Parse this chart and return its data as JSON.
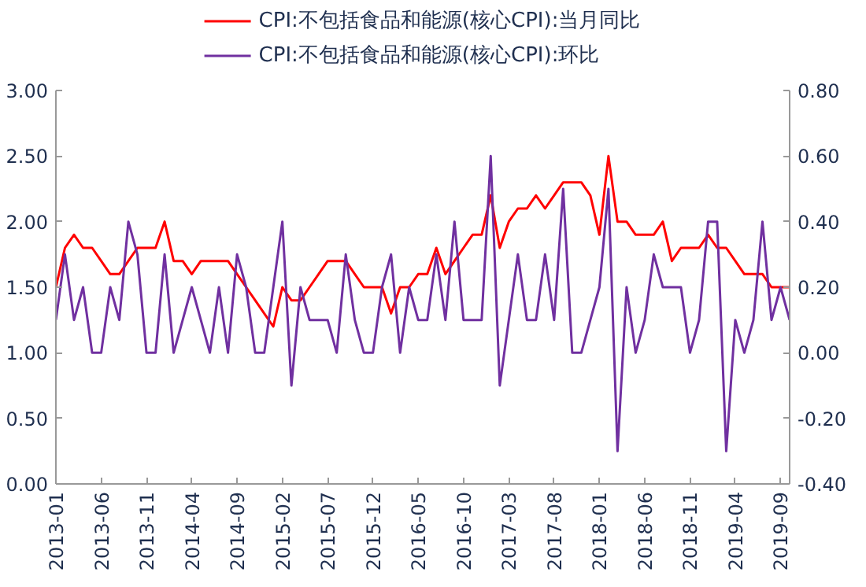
{
  "chart_data": {
    "type": "line",
    "legend": "top",
    "grid": false,
    "marker": "none",
    "line_style": "solid",
    "x": [
      "2013-01",
      "2013-02",
      "2013-03",
      "2013-04",
      "2013-05",
      "2013-06",
      "2013-07",
      "2013-08",
      "2013-09",
      "2013-10",
      "2013-11",
      "2013-12",
      "2014-01",
      "2014-02",
      "2014-03",
      "2014-04",
      "2014-05",
      "2014-06",
      "2014-07",
      "2014-08",
      "2014-09",
      "2014-10",
      "2014-11",
      "2014-12",
      "2015-01",
      "2015-02",
      "2015-03",
      "2015-04",
      "2015-05",
      "2015-06",
      "2015-07",
      "2015-08",
      "2015-09",
      "2015-10",
      "2015-11",
      "2015-12",
      "2016-01",
      "2016-02",
      "2016-03",
      "2016-04",
      "2016-05",
      "2016-06",
      "2016-07",
      "2016-08",
      "2016-09",
      "2016-10",
      "2016-11",
      "2016-12",
      "2017-01",
      "2017-02",
      "2017-03",
      "2017-04",
      "2017-05",
      "2017-06",
      "2017-07",
      "2017-08",
      "2017-09",
      "2017-10",
      "2017-11",
      "2017-12",
      "2018-01",
      "2018-02",
      "2018-03",
      "2018-04",
      "2018-05",
      "2018-06",
      "2018-07",
      "2018-08",
      "2018-09",
      "2018-10",
      "2018-11",
      "2018-12",
      "2019-01",
      "2019-02",
      "2019-03",
      "2019-04",
      "2019-05",
      "2019-06",
      "2019-07",
      "2019-08",
      "2019-09",
      "2019-10"
    ],
    "series": [
      {
        "name": "CPI:不包括食品和能源(核心CPI):当月同比",
        "color": "#ff0000",
        "values": [
          1.5,
          1.8,
          1.9,
          1.8,
          1.8,
          1.7,
          1.6,
          1.6,
          1.7,
          1.8,
          1.8,
          1.8,
          2.0,
          1.7,
          1.7,
          1.6,
          1.7,
          1.7,
          1.7,
          1.7,
          1.6,
          1.5,
          1.4,
          1.3,
          1.2,
          1.5,
          1.4,
          1.4,
          1.5,
          1.6,
          1.7,
          1.7,
          1.7,
          1.6,
          1.5,
          1.5,
          1.5,
          1.3,
          1.5,
          1.5,
          1.6,
          1.6,
          1.8,
          1.6,
          1.7,
          1.8,
          1.9,
          1.9,
          2.2,
          1.8,
          2.0,
          2.1,
          2.1,
          2.2,
          2.1,
          2.2,
          2.3,
          2.3,
          2.3,
          2.2,
          1.9,
          2.5,
          2.0,
          2.0,
          1.9,
          1.9,
          1.9,
          2.0,
          1.7,
          1.8,
          1.8,
          1.8,
          1.9,
          1.8,
          1.8,
          1.7,
          1.6,
          1.6,
          1.6,
          1.5,
          1.5,
          1.5
        ]
      },
      {
        "name": "CPI:不包括食品和能源(核心CPI):环比",
        "color": "#7030a0",
        "axis": "y2",
        "values": [
          0.1,
          0.3,
          0.1,
          0.2,
          0.0,
          0.0,
          0.2,
          0.1,
          0.4,
          0.3,
          0.0,
          0.0,
          0.3,
          0.0,
          0.1,
          0.2,
          0.1,
          0.0,
          0.2,
          0.0,
          0.3,
          0.2,
          0.0,
          0.0,
          0.2,
          0.4,
          -0.1,
          0.2,
          0.1,
          0.1,
          0.1,
          0.0,
          0.3,
          0.1,
          0.0,
          0.0,
          0.2,
          0.3,
          0.0,
          0.2,
          0.1,
          0.1,
          0.3,
          0.1,
          0.4,
          0.1,
          0.1,
          0.1,
          0.6,
          -0.1,
          0.1,
          0.3,
          0.1,
          0.1,
          0.3,
          0.1,
          0.5,
          0.0,
          0.0,
          0.1,
          0.2,
          0.5,
          -0.3,
          0.2,
          0.0,
          0.1,
          0.3,
          0.2,
          0.2,
          0.2,
          0.0,
          0.1,
          0.4,
          0.4,
          -0.3,
          0.1,
          0.0,
          0.1,
          0.4,
          0.1,
          0.2,
          0.1
        ]
      }
    ],
    "xlim": [
      "2013-01",
      "2019-10"
    ],
    "xticks": [
      "2013-01",
      "2013-06",
      "2013-11",
      "2014-04",
      "2014-09",
      "2015-02",
      "2015-07",
      "2015-12",
      "2016-05",
      "2016-10",
      "2017-03",
      "2017-08",
      "2018-01",
      "2018-06",
      "2018-11",
      "2019-04",
      "2019-09"
    ],
    "ylim": [
      0,
      3
    ],
    "yticks": [
      {
        "value": 0,
        "label": "0.00"
      },
      {
        "value": 0.5,
        "label": "0.50"
      },
      {
        "value": 1,
        "label": "1.00"
      },
      {
        "value": 1.5,
        "label": "1.50"
      },
      {
        "value": 2,
        "label": "2.00"
      },
      {
        "value": 2.5,
        "label": "2.50"
      },
      {
        "value": 3,
        "label": "3.00"
      }
    ],
    "y2lim": [
      -0.4,
      0.8
    ],
    "y2ticks": [
      {
        "value": -0.4,
        "label": "-0.40"
      },
      {
        "value": -0.2,
        "label": "-0.20"
      },
      {
        "value": 0,
        "label": "0.00"
      },
      {
        "value": 0.2,
        "label": "0.20"
      },
      {
        "value": 0.4,
        "label": "0.40"
      },
      {
        "value": 0.6,
        "label": "0.60"
      },
      {
        "value": 0.8,
        "label": "0.80"
      }
    ]
  }
}
